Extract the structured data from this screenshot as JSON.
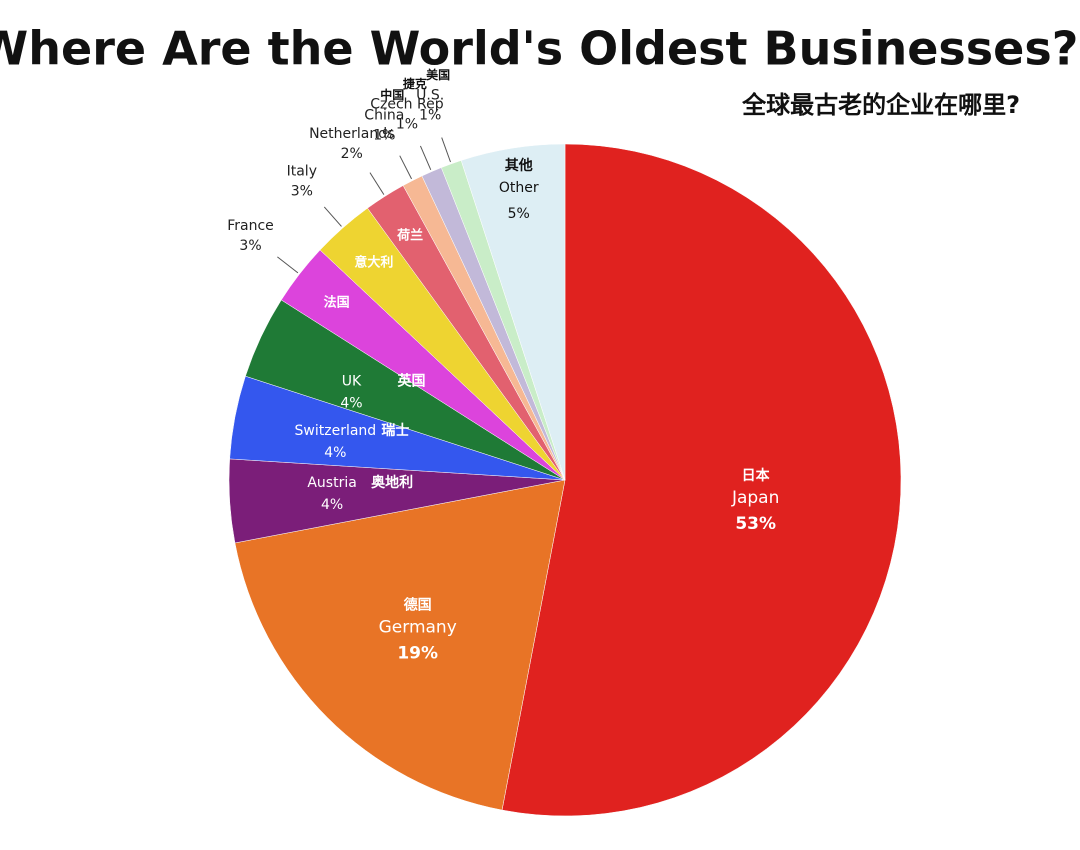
{
  "chart_data": {
    "type": "pie",
    "title": "Where Are the World's Oldest Businesses?",
    "subtitle": "全球最古老的企业在哪里?",
    "categories": [
      "Japan",
      "Germany",
      "Austria",
      "Switzerland",
      "UK",
      "France",
      "Italy",
      "Netherlands",
      "China",
      "Czech Rep",
      "U.S.",
      "Other"
    ],
    "categories_zh": [
      "日本",
      "德国",
      "奥地利",
      "瑞士",
      "英国",
      "法国",
      "意大利",
      "荷兰",
      "中国",
      "捷克",
      "美国",
      "其他"
    ],
    "values": [
      53,
      19,
      4,
      4,
      4,
      3,
      3,
      2,
      1,
      1,
      1,
      5
    ],
    "value_labels": [
      "53%",
      "19%",
      "4%",
      "4%",
      "4%",
      "3%",
      "3%",
      "2%",
      "1%",
      "1%",
      "1%",
      "5%"
    ],
    "colors": [
      "#e0221f",
      "#e87426",
      "#7b1e79",
      "#3457ee",
      "#1f7a36",
      "#dc44dc",
      "#eed431",
      "#e2616f",
      "#f6b894",
      "#c2b9d9",
      "#c9edc8",
      "#ddeef4"
    ]
  }
}
